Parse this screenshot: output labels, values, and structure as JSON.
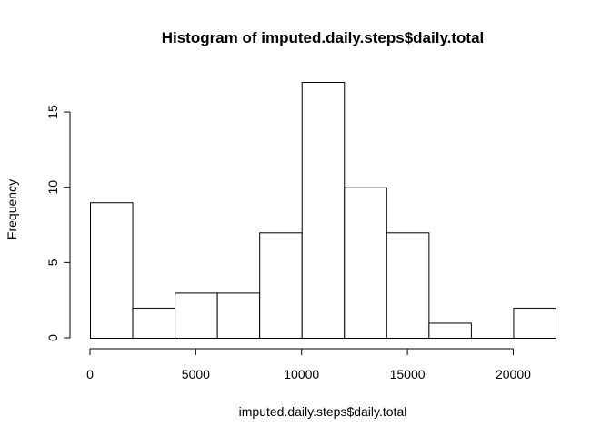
{
  "chart_data": {
    "type": "bar",
    "title": "Histogram of imputed.daily.steps$daily.total",
    "xlabel": "imputed.daily.steps$daily.total",
    "ylabel": "Frequency",
    "bins": [
      {
        "start": 0,
        "end": 2000,
        "count": 9
      },
      {
        "start": 2000,
        "end": 4000,
        "count": 2
      },
      {
        "start": 4000,
        "end": 6000,
        "count": 3
      },
      {
        "start": 6000,
        "end": 8000,
        "count": 3
      },
      {
        "start": 8000,
        "end": 10000,
        "count": 7
      },
      {
        "start": 10000,
        "end": 12000,
        "count": 17
      },
      {
        "start": 12000,
        "end": 14000,
        "count": 10
      },
      {
        "start": 14000,
        "end": 16000,
        "count": 7
      },
      {
        "start": 16000,
        "end": 18000,
        "count": 1
      },
      {
        "start": 18000,
        "end": 20000,
        "count": 0
      },
      {
        "start": 20000,
        "end": 22000,
        "count": 2
      }
    ],
    "xticks": [
      0,
      5000,
      10000,
      15000,
      20000
    ],
    "yticks": [
      0,
      5,
      10,
      15
    ],
    "xlim": [
      0,
      22000
    ],
    "ylim": [
      0,
      17
    ],
    "grid": false
  }
}
